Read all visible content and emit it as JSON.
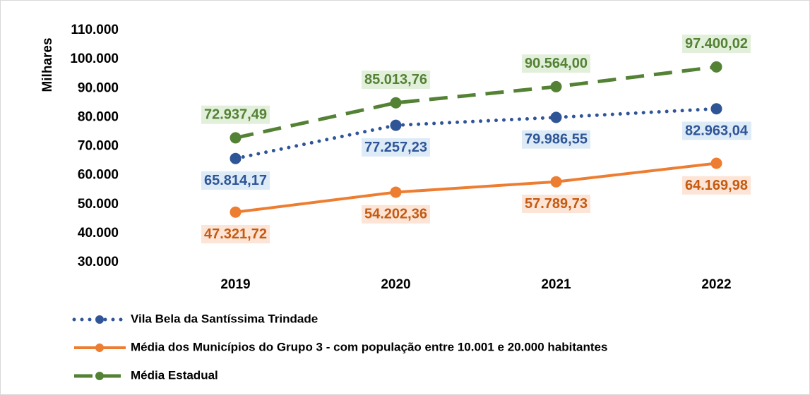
{
  "chart_data": {
    "type": "line",
    "y_label": "Milhares",
    "categories": [
      "2019",
      "2020",
      "2021",
      "2022"
    ],
    "ylim": [
      30000,
      110000
    ],
    "yticks": [
      {
        "value": 30000,
        "label": "30.000"
      },
      {
        "value": 40000,
        "label": "40.000"
      },
      {
        "value": 50000,
        "label": "50.000"
      },
      {
        "value": 60000,
        "label": "60.000"
      },
      {
        "value": 70000,
        "label": "70.000"
      },
      {
        "value": 80000,
        "label": "80.000"
      },
      {
        "value": 90000,
        "label": "90.000"
      },
      {
        "value": 100000,
        "label": "100.000"
      },
      {
        "value": 110000,
        "label": "110.000"
      }
    ],
    "grid": false,
    "legend": "bottom",
    "series": [
      {
        "name": "Vila Bela da Santíssima Trindade",
        "color": "#2f5597",
        "line_style": "dotted",
        "label_color": "#2f5597",
        "label_background": "#ddebf7",
        "label_position": "below",
        "values": [
          65814.17,
          77257.23,
          79986.55,
          82963.04
        ],
        "value_labels": [
          "65.814,17",
          "77.257,23",
          "79.986,55",
          "82.963,04"
        ]
      },
      {
        "name": "Média dos Municípios do Grupo 3 - com população entre 10.001 e 20.000 habitantes",
        "color": "#ed7d31",
        "line_style": "solid",
        "label_color": "#c55a11",
        "label_background": "#fce4d6",
        "label_position": "below",
        "values": [
          47321.72,
          54202.36,
          57789.73,
          64169.98
        ],
        "value_labels": [
          "47.321,72",
          "54.202,36",
          "57.789,73",
          "64.169,98"
        ]
      },
      {
        "name": "Média Estadual",
        "color": "#548235",
        "line_style": "dashed",
        "label_color": "#548235",
        "label_background": "#e2efda",
        "label_position": "above",
        "values": [
          72937.49,
          85013.76,
          90564.0,
          97400.02
        ],
        "value_labels": [
          "72.937,49",
          "85.013,76",
          "90.564,00",
          "97.400,02"
        ]
      }
    ]
  }
}
